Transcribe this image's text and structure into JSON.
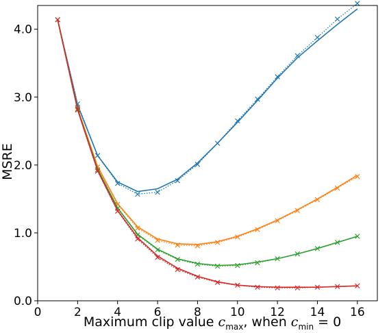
{
  "chart_data": {
    "type": "line",
    "title": "",
    "xlabel": "Maximum clip value c_max, when c_min = 0",
    "xlabel_parts": {
      "prefix": "Maximum clip value ",
      "var1": "c",
      "sub1": "max",
      "mid": ", when ",
      "var2": "c",
      "sub2": "min",
      "suffix": " = 0"
    },
    "ylabel": "MSRE",
    "xlim": [
      0,
      17
    ],
    "ylim": [
      0,
      4.35
    ],
    "xticks": [
      0,
      2,
      4,
      6,
      8,
      10,
      12,
      14,
      16
    ],
    "yticks": [
      0.0,
      1.0,
      2.0,
      3.0,
      4.0
    ],
    "ytick_labels": [
      "0.0",
      "1.0",
      "2.0",
      "3.0",
      "4.0"
    ],
    "grid": false,
    "legend": null,
    "x": [
      1,
      2,
      3,
      4,
      5,
      6,
      7,
      8,
      9,
      10,
      11,
      12,
      13,
      14,
      15,
      16
    ],
    "series": [
      {
        "color": "#1f77b4",
        "solid": [
          4.14,
          2.88,
          2.14,
          1.75,
          1.61,
          1.65,
          1.79,
          2.03,
          2.32,
          2.63,
          2.95,
          3.28,
          3.58,
          3.83,
          4.07,
          4.3
        ],
        "markers": [
          4.14,
          2.9,
          2.14,
          1.73,
          1.57,
          1.6,
          1.77,
          2.01,
          2.32,
          2.65,
          2.97,
          3.3,
          3.61,
          3.88,
          4.15,
          4.38
        ]
      },
      {
        "color": "#ff7f0e",
        "solid": [
          4.14,
          2.83,
          1.98,
          1.43,
          1.09,
          0.91,
          0.84,
          0.83,
          0.87,
          0.95,
          1.06,
          1.19,
          1.34,
          1.5,
          1.67,
          1.85
        ],
        "markers": [
          4.14,
          2.83,
          1.97,
          1.42,
          1.07,
          0.89,
          0.82,
          0.81,
          0.86,
          0.94,
          1.05,
          1.18,
          1.33,
          1.49,
          1.66,
          1.83
        ]
      },
      {
        "color": "#2ca02c",
        "solid": [
          4.14,
          2.82,
          1.94,
          1.37,
          0.98,
          0.76,
          0.62,
          0.55,
          0.52,
          0.53,
          0.57,
          0.62,
          0.69,
          0.77,
          0.86,
          0.95
        ],
        "markers": [
          4.14,
          2.82,
          1.93,
          1.36,
          0.97,
          0.75,
          0.61,
          0.54,
          0.51,
          0.52,
          0.56,
          0.62,
          0.69,
          0.77,
          0.86,
          0.95
        ]
      },
      {
        "color": "#d62728",
        "solid": [
          4.14,
          2.81,
          1.92,
          1.33,
          0.93,
          0.66,
          0.48,
          0.36,
          0.28,
          0.23,
          0.21,
          0.2,
          0.2,
          0.2,
          0.21,
          0.22
        ],
        "markers": [
          4.14,
          2.81,
          1.91,
          1.32,
          0.91,
          0.64,
          0.46,
          0.35,
          0.27,
          0.23,
          0.2,
          0.19,
          0.19,
          0.2,
          0.21,
          0.22
        ]
      }
    ]
  }
}
